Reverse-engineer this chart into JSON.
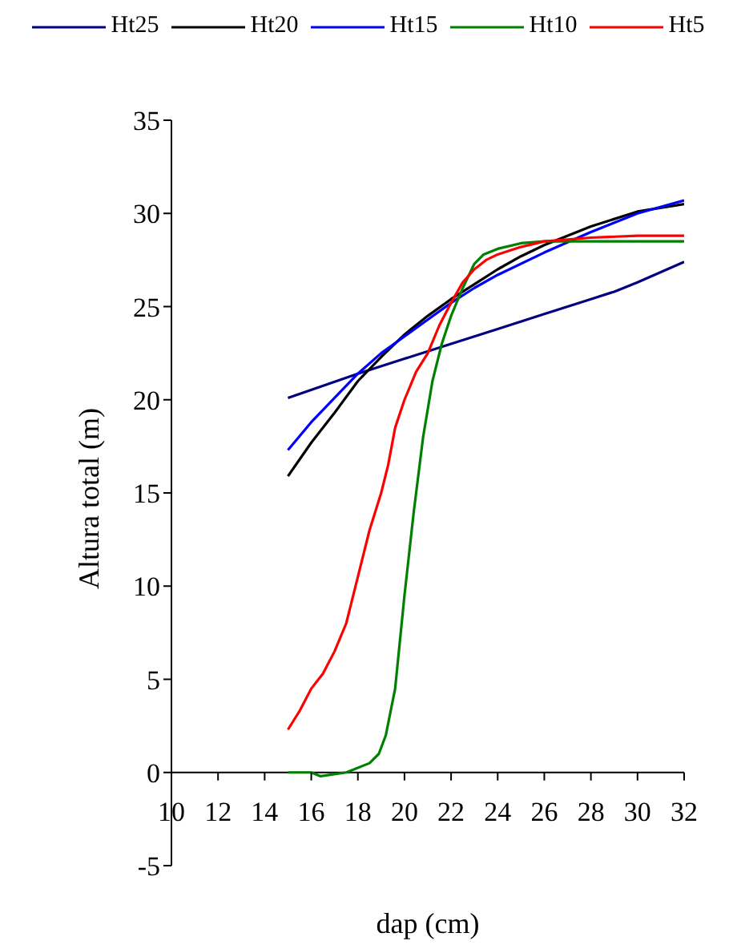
{
  "chart_data": {
    "type": "line",
    "xlabel": "dap (cm)",
    "ylabel": "Altura total (m)",
    "xlim": [
      10,
      32
    ],
    "xticks": [
      10,
      12,
      14,
      16,
      18,
      20,
      22,
      24,
      26,
      28,
      30,
      32
    ],
    "ylim": [
      -5,
      35
    ],
    "yticks": [
      -5,
      0,
      5,
      10,
      15,
      20,
      25,
      30,
      35
    ],
    "grid": false,
    "legend": "top",
    "marker": "none",
    "line_style": "solid",
    "series": [
      {
        "name": "Ht25",
        "color": "#000080",
        "x": [
          15,
          18,
          20,
          22,
          24,
          26,
          28,
          29,
          30,
          32
        ],
        "values": [
          20.1,
          21.4,
          22.2,
          23.0,
          23.8,
          24.6,
          25.4,
          25.8,
          26.3,
          27.4
        ]
      },
      {
        "name": "Ht20",
        "color": "#000000",
        "x": [
          15,
          16,
          17,
          18,
          19,
          20,
          21,
          22,
          23,
          24,
          25,
          26,
          28,
          30,
          32
        ],
        "values": [
          15.9,
          17.7,
          19.3,
          21.0,
          22.3,
          23.5,
          24.5,
          25.4,
          26.2,
          27.0,
          27.7,
          28.3,
          29.3,
          30.1,
          30.5
        ]
      },
      {
        "name": "Ht15",
        "color": "#0000ff",
        "x": [
          15,
          16,
          17,
          18,
          19,
          20,
          21,
          22,
          23,
          24,
          26,
          28,
          30,
          32
        ],
        "values": [
          17.3,
          18.8,
          20.1,
          21.4,
          22.5,
          23.4,
          24.3,
          25.2,
          26.0,
          26.7,
          27.9,
          29.0,
          30.0,
          30.7
        ]
      },
      {
        "name": "Ht10",
        "color": "#008000",
        "x": [
          15,
          16,
          16.4,
          17.5,
          18.5,
          18.9,
          19.2,
          19.6,
          19.8,
          20,
          20.4,
          20.8,
          21.2,
          21.6,
          22,
          22.5,
          23,
          23.4,
          24,
          25,
          26,
          32
        ],
        "values": [
          0,
          0,
          -0.2,
          0,
          0.5,
          1,
          2,
          4.5,
          7,
          9.5,
          14,
          18,
          21,
          23,
          24.5,
          26,
          27.3,
          27.8,
          28.1,
          28.4,
          28.5,
          28.5
        ]
      },
      {
        "name": "Ht5",
        "color": "#ff0000",
        "x": [
          15,
          15.5,
          16,
          16.5,
          17,
          17.5,
          18,
          18.5,
          19,
          19.3,
          19.6,
          20,
          20.5,
          21,
          21.5,
          22,
          22.5,
          23,
          23.5,
          24,
          25,
          26,
          28,
          30,
          32
        ],
        "values": [
          2.3,
          3.3,
          4.5,
          5.3,
          6.5,
          8.0,
          10.5,
          13,
          15,
          16.5,
          18.5,
          20,
          21.5,
          22.5,
          24,
          25.2,
          26.3,
          27,
          27.5,
          27.8,
          28.2,
          28.5,
          28.7,
          28.8,
          28.8
        ]
      }
    ]
  }
}
